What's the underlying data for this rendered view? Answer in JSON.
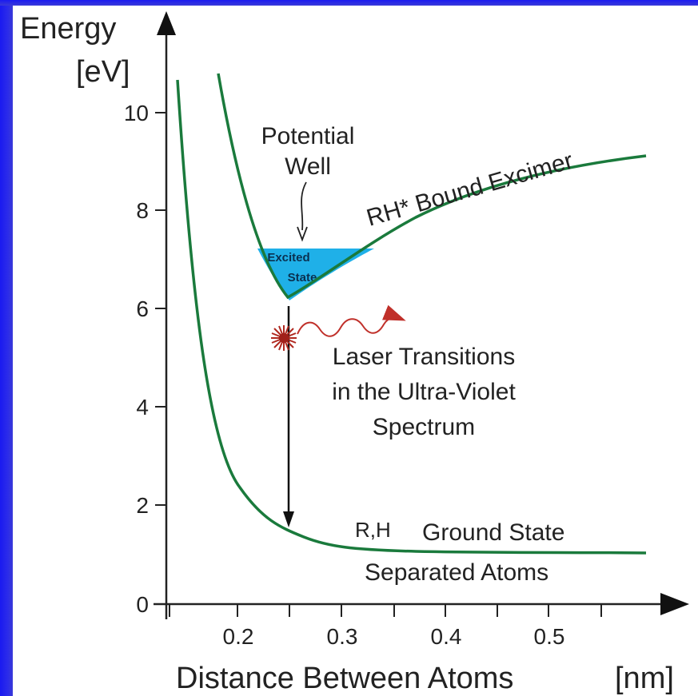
{
  "colors": {
    "curve": "#1a7a3c",
    "well_fill": "#1fb0e8",
    "axis": "#222222",
    "photon": "#c0302a"
  },
  "axes": {
    "y_title_line1": "Energy",
    "y_title_line2": "[eV]",
    "x_title": "Distance Between Atoms",
    "x_unit": "[nm]",
    "y_ticks": [
      "0",
      "2",
      "4",
      "6",
      "8",
      "10"
    ],
    "x_ticks": [
      "0.2",
      "0.3",
      "0.4",
      "0.5"
    ]
  },
  "labels": {
    "potential_well_1": "Potential",
    "potential_well_2": "Well",
    "excited_1": "Excited",
    "excited_2": "State",
    "bound_excimer": "RH* Bound Excimer",
    "laser_1": "Laser Transitions",
    "laser_2": "in the Ultra-Violet",
    "laser_3": "Spectrum",
    "rh": "R,H",
    "ground_state": "Ground State",
    "separated": "Separated Atoms"
  }
}
